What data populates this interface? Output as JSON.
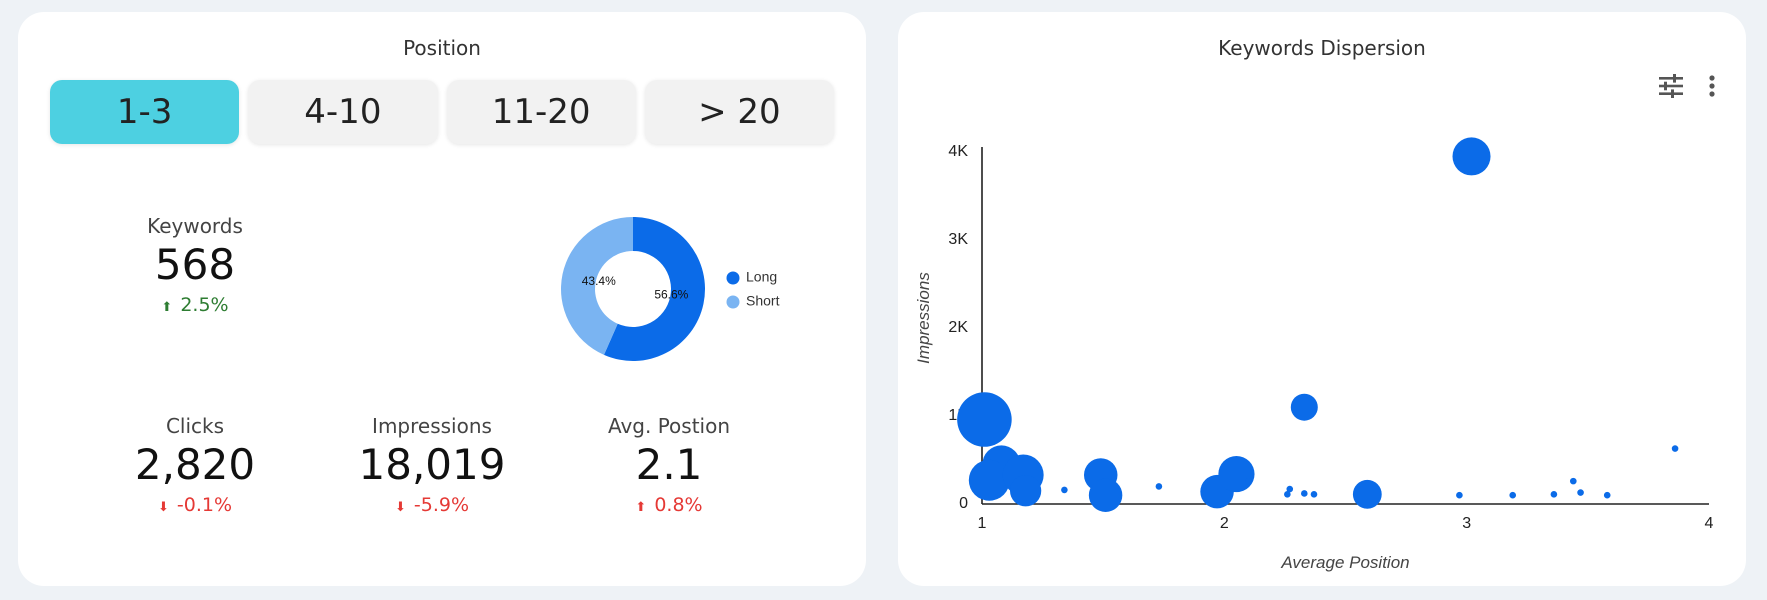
{
  "position_card": {
    "title": "Position",
    "tabs": [
      "1-3",
      "4-10",
      "11-20",
      "> 20"
    ],
    "active_tab": 0,
    "metrics": {
      "keywords": {
        "label": "Keywords",
        "value": "568",
        "change": "2.5%",
        "direction": "up"
      },
      "clicks": {
        "label": "Clicks",
        "value": "2,820",
        "change": "-0.1%",
        "direction": "down"
      },
      "impressions": {
        "label": "Impressions",
        "value": "18,019",
        "change": "-5.9%",
        "direction": "down"
      },
      "avg_position": {
        "label": "Avg. Postion",
        "value": "2.1",
        "change": "0.8%",
        "direction": "up_bad"
      }
    }
  },
  "keywords_card": {
    "title": "Keywords Dispersion",
    "icons": [
      "tune-icon",
      "more-vert-icon"
    ]
  },
  "colors": {
    "accent_tab": "#4dd0e1",
    "long": "#0b6be8",
    "short": "#7ab4f2",
    "up": "#2e7d32",
    "down": "#e53935"
  },
  "chart_data": [
    {
      "type": "pie",
      "donut": true,
      "labels": [
        "Long",
        "Short"
      ],
      "values": [
        56.6,
        43.4
      ],
      "value_labels": [
        "56.6%",
        "43.4%"
      ],
      "colors": [
        "#0b6be8",
        "#7ab4f2"
      ],
      "legend": "right"
    },
    {
      "type": "scatter",
      "title": "Keywords Dispersion",
      "xlabel": "Average Position",
      "ylabel": "Impressions",
      "xlim": [
        1,
        4
      ],
      "ylim": [
        0,
        4000
      ],
      "xticks": [
        "1",
        "2",
        "3",
        "4"
      ],
      "yticks": [
        "0",
        "1K",
        "2K",
        "3K",
        "4K"
      ],
      "color": "#0b6be8",
      "points": [
        {
          "x": 3.02,
          "y": 3950,
          "size": 2.5
        },
        {
          "x": 1.01,
          "y": 960,
          "size": 6.0
        },
        {
          "x": 2.33,
          "y": 1100,
          "size": 1.0
        },
        {
          "x": 3.86,
          "y": 630,
          "size": 0.5
        },
        {
          "x": 1.08,
          "y": 450,
          "size": 2.5
        },
        {
          "x": 1.03,
          "y": 270,
          "size": 3.0
        },
        {
          "x": 1.17,
          "y": 330,
          "size": 3.0
        },
        {
          "x": 1.18,
          "y": 150,
          "size": 1.5
        },
        {
          "x": 1.34,
          "y": 160,
          "size": 0.5
        },
        {
          "x": 1.49,
          "y": 330,
          "size": 1.8
        },
        {
          "x": 1.51,
          "y": 100,
          "size": 1.8
        },
        {
          "x": 1.73,
          "y": 200,
          "size": 0.5
        },
        {
          "x": 1.97,
          "y": 140,
          "size": 1.8
        },
        {
          "x": 2.05,
          "y": 340,
          "size": 2.2
        },
        {
          "x": 2.1,
          "y": 260,
          "size": 0.5
        },
        {
          "x": 2.26,
          "y": 110,
          "size": 0.5
        },
        {
          "x": 2.27,
          "y": 170,
          "size": 0.5
        },
        {
          "x": 2.33,
          "y": 120,
          "size": 0.5
        },
        {
          "x": 2.37,
          "y": 110,
          "size": 0.6
        },
        {
          "x": 2.57,
          "y": 180,
          "size": 0.5
        },
        {
          "x": 2.59,
          "y": 110,
          "size": 1.2
        },
        {
          "x": 2.97,
          "y": 100,
          "size": 0.5
        },
        {
          "x": 3.19,
          "y": 100,
          "size": 0.5
        },
        {
          "x": 3.36,
          "y": 110,
          "size": 0.5
        },
        {
          "x": 3.44,
          "y": 260,
          "size": 0.5
        },
        {
          "x": 3.47,
          "y": 130,
          "size": 0.5
        },
        {
          "x": 3.58,
          "y": 100,
          "size": 0.5
        }
      ]
    }
  ]
}
